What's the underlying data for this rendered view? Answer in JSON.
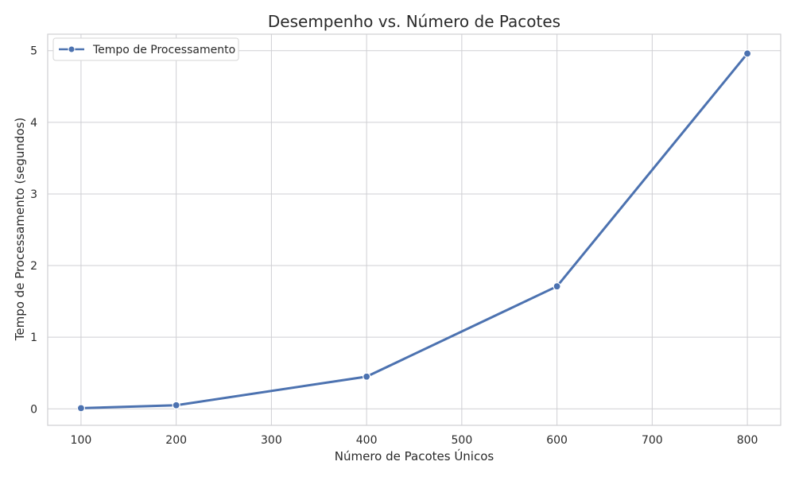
{
  "chart_data": {
    "type": "line",
    "title": "Desempenho vs. Número de Pacotes",
    "xlabel": "Número de Pacotes Únicos",
    "ylabel": "Tempo de Processamento (segundos)",
    "xlim": [
      65,
      835
    ],
    "ylim": [
      -0.23,
      5.23
    ],
    "x_ticks": [
      100,
      200,
      300,
      400,
      500,
      600,
      700,
      800
    ],
    "y_ticks": [
      0,
      1,
      2,
      3,
      4,
      5
    ],
    "grid": true,
    "legend_position": "top-left",
    "series": [
      {
        "name": "Tempo de Processamento",
        "color": "#4c72b0",
        "marker": "circle",
        "x": [
          100,
          200,
          400,
          600,
          800
        ],
        "y": [
          0.01,
          0.05,
          0.45,
          1.71,
          4.96
        ]
      }
    ]
  }
}
